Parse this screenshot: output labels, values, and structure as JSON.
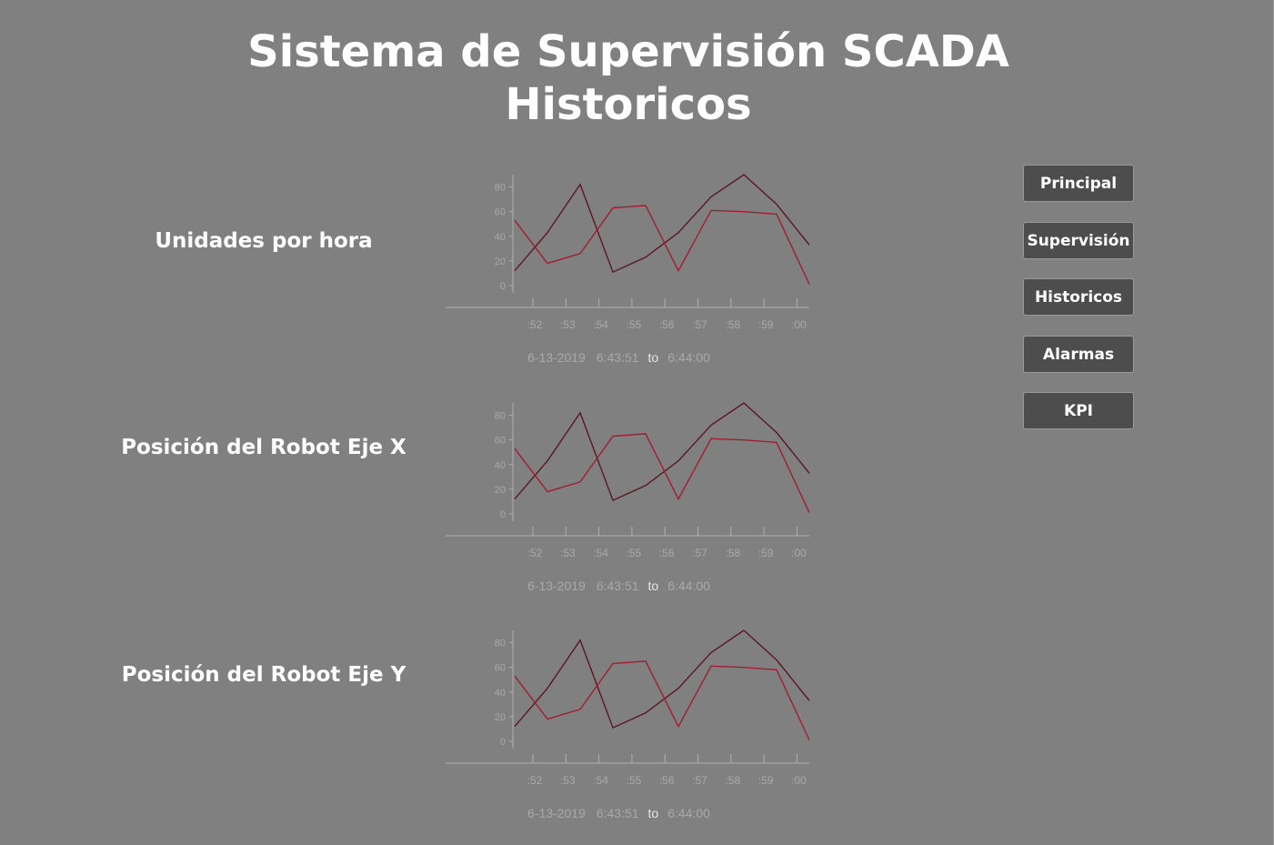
{
  "page": {
    "title_line1": "Sistema de Supervisión SCADA",
    "title_line2": "Historicos"
  },
  "nav": [
    {
      "label": "Principal"
    },
    {
      "label": "Supervisión"
    },
    {
      "label": "Historicos"
    },
    {
      "label": "Alarmas"
    },
    {
      "label": "KPI"
    }
  ],
  "colors": {
    "background": "#808080",
    "series_dark": "#5a1628",
    "series_red": "#a01e32",
    "axis": "#b0b0b0",
    "tick_text": "#a9a9a9",
    "button_bg": "#4d4d4d"
  },
  "charts": [
    {
      "label": "Unidades por hora",
      "range": {
        "date": "6-13-2019",
        "start": "6:43:51",
        "to": "to",
        "end": "6:44:00"
      }
    },
    {
      "label": "Posición del Robot Eje X",
      "range": {
        "date": "6-13-2019",
        "start": "6:43:51",
        "to": "to",
        "end": "6:44:00"
      }
    },
    {
      "label": "Posición del Robot Eje Y",
      "range": {
        "date": "6-13-2019",
        "start": "6:43:51",
        "to": "to",
        "end": "6:44:00"
      }
    }
  ],
  "chart_data": [
    {
      "type": "line",
      "x": [
        0,
        1,
        2,
        3,
        4,
        5,
        6,
        7,
        8,
        9
      ],
      "x_ticks": [
        ":52",
        ":53",
        ":54",
        ":55",
        ":56",
        ":57",
        ":58",
        ":59",
        ":00"
      ],
      "y_ticks": [
        0,
        20,
        40,
        60,
        80
      ],
      "ylim": [
        0,
        90
      ],
      "series": [
        {
          "color": "#5a1628",
          "values": [
            12,
            43,
            82,
            11,
            23,
            43,
            72,
            90,
            66,
            33
          ]
        },
        {
          "color": "#a01e32",
          "values": [
            53,
            18,
            26,
            63,
            65,
            12,
            61,
            60,
            58,
            1
          ]
        }
      ]
    },
    {
      "type": "line",
      "x": [
        0,
        1,
        2,
        3,
        4,
        5,
        6,
        7,
        8,
        9
      ],
      "x_ticks": [
        ":52",
        ":53",
        ":54",
        ":55",
        ":56",
        ":57",
        ":58",
        ":59",
        ":00"
      ],
      "y_ticks": [
        0,
        20,
        40,
        60,
        80
      ],
      "ylim": [
        0,
        90
      ],
      "series": [
        {
          "color": "#5a1628",
          "values": [
            12,
            43,
            82,
            11,
            23,
            43,
            72,
            90,
            66,
            33
          ]
        },
        {
          "color": "#a01e32",
          "values": [
            53,
            18,
            26,
            63,
            65,
            12,
            61,
            60,
            58,
            1
          ]
        }
      ]
    },
    {
      "type": "line",
      "x": [
        0,
        1,
        2,
        3,
        4,
        5,
        6,
        7,
        8,
        9
      ],
      "x_ticks": [
        ":52",
        ":53",
        ":54",
        ":55",
        ":56",
        ":57",
        ":58",
        ":59",
        ":00"
      ],
      "y_ticks": [
        0,
        20,
        40,
        60,
        80
      ],
      "ylim": [
        0,
        90
      ],
      "series": [
        {
          "color": "#5a1628",
          "values": [
            12,
            43,
            82,
            11,
            23,
            43,
            72,
            90,
            66,
            33
          ]
        },
        {
          "color": "#a01e32",
          "values": [
            53,
            18,
            26,
            63,
            65,
            12,
            61,
            60,
            58,
            1
          ]
        }
      ]
    }
  ]
}
